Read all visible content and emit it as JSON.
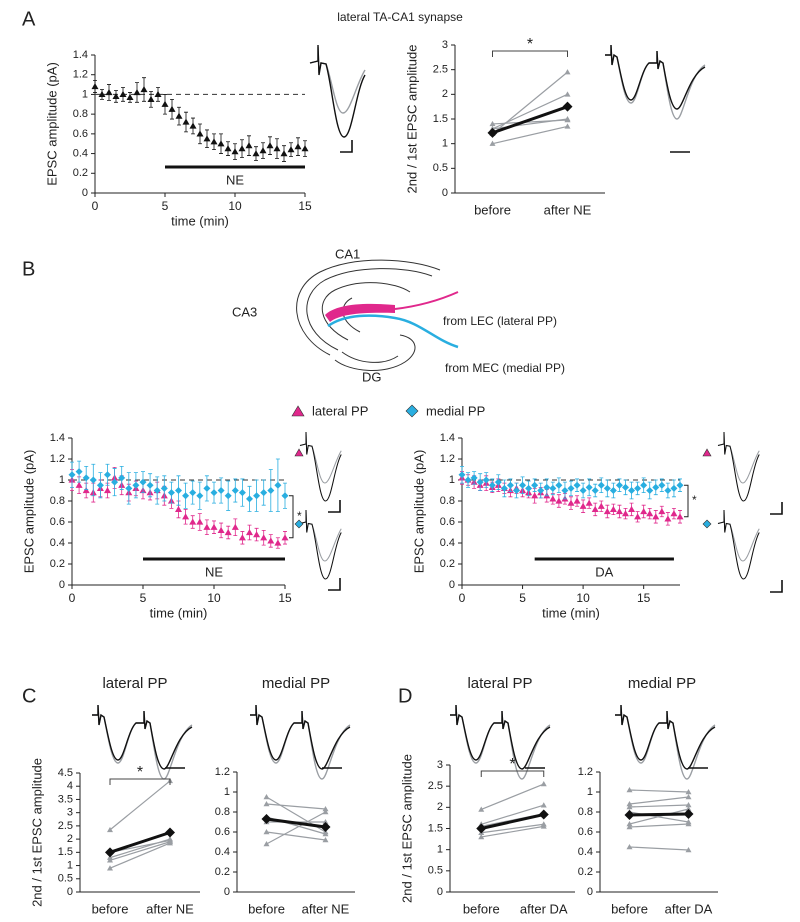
{
  "figure": {
    "panel_labels": [
      "A",
      "B",
      "C",
      "D"
    ],
    "diagram": {
      "regions": [
        "CA1",
        "CA3",
        "DG"
      ],
      "inputs": [
        "from LEC (lateral PP)",
        "from MEC (medial PP)"
      ],
      "input_colors": [
        "#e0288c",
        "#29aee0"
      ]
    }
  },
  "chart_data": [
    {
      "type": "scatter",
      "title": "lateral TA-CA1 synapse",
      "x_label": "time (min)",
      "y_label": "EPSC amplitude (pA)",
      "x": [
        0,
        0.5,
        1,
        1.5,
        2,
        2.5,
        3,
        3.5,
        4,
        4.5,
        5,
        5.5,
        6,
        6.5,
        7,
        7.5,
        8,
        8.5,
        9,
        9.5,
        10,
        10.5,
        11,
        11.5,
        12,
        12.5,
        13,
        13.5,
        14,
        14.5,
        15
      ],
      "series": [
        {
          "color": "#111111",
          "marker": "triangle",
          "values": [
            1.08,
            1.0,
            1.02,
            0.98,
            1.0,
            0.97,
            1.02,
            1.05,
            0.95,
            1.0,
            0.9,
            0.85,
            0.78,
            0.72,
            0.68,
            0.6,
            0.55,
            0.52,
            0.5,
            0.45,
            0.42,
            0.45,
            0.48,
            0.4,
            0.43,
            0.48,
            0.45,
            0.4,
            0.44,
            0.47,
            0.45
          ],
          "errors": [
            0.06,
            0.05,
            0.08,
            0.06,
            0.07,
            0.05,
            0.1,
            0.12,
            0.08,
            0.07,
            0.1,
            0.1,
            0.09,
            0.1,
            0.08,
            0.1,
            0.09,
            0.08,
            0.1,
            0.07,
            0.08,
            0.09,
            0.1,
            0.07,
            0.08,
            0.09,
            0.1,
            0.08,
            0.07,
            0.09,
            0.08
          ]
        }
      ],
      "xlim": [
        0,
        15
      ],
      "xticks": [
        0,
        5,
        10,
        15
      ],
      "ylim": [
        0,
        1.4
      ],
      "yticks": [
        0,
        0.2,
        0.4,
        0.6,
        0.8,
        1,
        1.2,
        1.4
      ],
      "reference": 1,
      "drug_bar": {
        "from": 5,
        "to": 15,
        "label": "NE"
      }
    },
    {
      "type": "line",
      "y_label": "2nd / 1st EPSC amplitude",
      "categories": [
        "before",
        "after NE"
      ],
      "significance": "*",
      "ylim": [
        0,
        3
      ],
      "yticks": [
        0,
        0.5,
        1,
        1.5,
        2,
        2.5,
        3
      ],
      "series": [
        {
          "color": "#9a9ea3",
          "marker": "triangle",
          "values": [
            1.0,
            1.35
          ]
        },
        {
          "color": "#9a9ea3",
          "marker": "triangle",
          "values": [
            1.3,
            1.5
          ]
        },
        {
          "color": "#9a9ea3",
          "marker": "triangle",
          "values": [
            1.4,
            1.48
          ]
        },
        {
          "color": "#9a9ea3",
          "marker": "triangle",
          "values": [
            1.3,
            2.0
          ]
        },
        {
          "color": "#9a9ea3",
          "marker": "triangle",
          "values": [
            1.2,
            2.45
          ]
        },
        {
          "color": "#111111",
          "marker": "diamond",
          "width": 3,
          "values": [
            1.22,
            1.75
          ]
        }
      ]
    },
    {
      "type": "scatter",
      "x_label": "time (min)",
      "y_label": "EPSC amplitude (pA)",
      "significance": "*",
      "x": [
        0,
        0.5,
        1,
        1.5,
        2,
        2.5,
        3,
        3.5,
        4,
        4.5,
        5,
        5.5,
        6,
        6.5,
        7,
        7.5,
        8,
        8.5,
        9,
        9.5,
        10,
        10.5,
        11,
        11.5,
        12,
        12.5,
        13,
        13.5,
        14,
        14.5,
        15
      ],
      "series": [
        {
          "name": "lateral PP",
          "color": "#e0288c",
          "marker": "triangle",
          "values": [
            1.0,
            0.95,
            0.9,
            0.88,
            0.92,
            0.9,
            1.02,
            0.95,
            0.88,
            0.92,
            0.9,
            0.88,
            0.9,
            0.85,
            0.8,
            0.72,
            0.65,
            0.6,
            0.6,
            0.55,
            0.55,
            0.52,
            0.5,
            0.55,
            0.45,
            0.5,
            0.48,
            0.45,
            0.42,
            0.4,
            0.45
          ],
          "errors": [
            0.1,
            0.08,
            0.07,
            0.09,
            0.08,
            0.07,
            0.1,
            0.09,
            0.08,
            0.07,
            0.08,
            0.07,
            0.08,
            0.09,
            0.07,
            0.08,
            0.07,
            0.06,
            0.08,
            0.07,
            0.06,
            0.07,
            0.06,
            0.08,
            0.06,
            0.07,
            0.06,
            0.07,
            0.06,
            0.05,
            0.06
          ]
        },
        {
          "name": "medial PP",
          "color": "#29aee0",
          "marker": "diamond",
          "values": [
            1.05,
            1.08,
            1.02,
            1.0,
            0.95,
            1.05,
            0.98,
            1.02,
            0.92,
            0.95,
            0.98,
            0.95,
            0.9,
            0.92,
            0.88,
            0.9,
            0.85,
            0.88,
            0.85,
            0.92,
            0.88,
            0.9,
            0.85,
            0.9,
            0.88,
            0.82,
            0.85,
            0.88,
            0.9,
            0.95,
            0.85
          ],
          "errors": [
            0.12,
            0.1,
            0.11,
            0.15,
            0.12,
            0.1,
            0.13,
            0.11,
            0.15,
            0.12,
            0.1,
            0.11,
            0.13,
            0.12,
            0.1,
            0.14,
            0.12,
            0.11,
            0.13,
            0.12,
            0.1,
            0.12,
            0.14,
            0.11,
            0.13,
            0.12,
            0.15,
            0.12,
            0.2,
            0.25,
            0.12
          ]
        }
      ],
      "xlim": [
        0,
        15
      ],
      "xticks": [
        0,
        5,
        10,
        15
      ],
      "ylim": [
        0,
        1.4
      ],
      "yticks": [
        0,
        0.2,
        0.4,
        0.6,
        0.8,
        1,
        1.2,
        1.4
      ],
      "reference": 1,
      "drug_bar": {
        "from": 5,
        "to": 15,
        "label": "NE"
      }
    },
    {
      "type": "scatter",
      "x_label": "time (min)",
      "y_label": "EPSC amplitude (pA)",
      "significance": "*",
      "x": [
        0,
        0.5,
        1,
        1.5,
        2,
        2.5,
        3,
        3.5,
        4,
        4.5,
        5,
        5.5,
        6,
        6.5,
        7,
        7.5,
        8,
        8.5,
        9,
        9.5,
        10,
        10.5,
        11,
        11.5,
        12,
        12.5,
        13,
        13.5,
        14,
        14.5,
        15,
        15.5,
        16,
        16.5,
        17,
        17.5,
        18
      ],
      "series": [
        {
          "color": "#e0288c",
          "marker": "triangle",
          "values": [
            1.02,
            1.0,
            0.98,
            0.95,
            0.97,
            0.93,
            0.95,
            0.92,
            0.9,
            0.92,
            0.9,
            0.88,
            0.85,
            0.88,
            0.85,
            0.82,
            0.8,
            0.82,
            0.78,
            0.8,
            0.75,
            0.78,
            0.72,
            0.75,
            0.7,
            0.72,
            0.7,
            0.68,
            0.72,
            0.65,
            0.7,
            0.68,
            0.65,
            0.7,
            0.63,
            0.68,
            0.65
          ],
          "errors": [
            0.06,
            0.05,
            0.06,
            0.05,
            0.07,
            0.05,
            0.06,
            0.05,
            0.06,
            0.05,
            0.06,
            0.05,
            0.07,
            0.05,
            0.06,
            0.05,
            0.06,
            0.05,
            0.06,
            0.05,
            0.06,
            0.05,
            0.06,
            0.05,
            0.06,
            0.05,
            0.06,
            0.05,
            0.06,
            0.05,
            0.06,
            0.05,
            0.06,
            0.05,
            0.06,
            0.05,
            0.06
          ]
        },
        {
          "color": "#29aee0",
          "marker": "diamond",
          "values": [
            1.05,
            1.0,
            1.02,
            0.98,
            1.0,
            0.95,
            0.98,
            0.92,
            0.95,
            0.9,
            0.95,
            0.92,
            0.95,
            0.9,
            0.93,
            0.92,
            0.95,
            0.9,
            0.92,
            0.95,
            0.9,
            0.93,
            0.9,
            0.95,
            0.92,
            0.9,
            0.95,
            0.93,
            0.9,
            0.92,
            0.95,
            0.9,
            0.93,
            0.95,
            0.9,
            0.92,
            0.95
          ],
          "errors": [
            0.08,
            0.07,
            0.06,
            0.08,
            0.07,
            0.06,
            0.07,
            0.08,
            0.06,
            0.07,
            0.08,
            0.07,
            0.06,
            0.07,
            0.08,
            0.06,
            0.07,
            0.08,
            0.07,
            0.06,
            0.07,
            0.08,
            0.06,
            0.07,
            0.08,
            0.07,
            0.06,
            0.07,
            0.08,
            0.06,
            0.07,
            0.08,
            0.07,
            0.06,
            0.07,
            0.08,
            0.06
          ]
        }
      ],
      "xlim": [
        0,
        18
      ],
      "xticks": [
        0,
        5,
        10,
        15
      ],
      "ylim": [
        0,
        1.4
      ],
      "yticks": [
        0,
        0.2,
        0.4,
        0.6,
        0.8,
        1,
        1.2,
        1.4
      ],
      "reference": 1,
      "drug_bar": {
        "from": 6,
        "to": 17.5,
        "label": "DA"
      }
    },
    {
      "type": "line",
      "title": "lateral PP",
      "title_color": "#e0288c",
      "y_label": "2nd / 1st EPSC amplitude",
      "categories": [
        "before",
        "after NE"
      ],
      "significance": "*",
      "ylim": [
        0,
        4.5
      ],
      "yticks": [
        0,
        0.5,
        1,
        1.5,
        2,
        2.5,
        3,
        3.5,
        4,
        4.5
      ],
      "series": [
        {
          "color": "#9a9ea3",
          "marker": "triangle",
          "values": [
            2.35,
            4.2
          ]
        },
        {
          "color": "#9a9ea3",
          "marker": "triangle",
          "values": [
            1.5,
            1.95
          ]
        },
        {
          "color": "#9a9ea3",
          "marker": "triangle",
          "values": [
            1.3,
            2.0
          ]
        },
        {
          "color": "#9a9ea3",
          "marker": "triangle",
          "values": [
            1.2,
            1.9
          ]
        },
        {
          "color": "#9a9ea3",
          "marker": "triangle",
          "values": [
            0.9,
            1.85
          ]
        },
        {
          "color": "#111111",
          "marker": "diamond",
          "width": 3,
          "values": [
            1.5,
            2.25
          ]
        }
      ]
    },
    {
      "type": "line",
      "title": "medial PP",
      "title_color": "#29aee0",
      "categories": [
        "before",
        "after NE"
      ],
      "ylim": [
        0,
        1.2
      ],
      "yticks": [
        0,
        0.2,
        0.4,
        0.6,
        0.8,
        1,
        1.2
      ],
      "series": [
        {
          "color": "#9a9ea3",
          "marker": "triangle",
          "values": [
            0.95,
            0.6
          ]
        },
        {
          "color": "#9a9ea3",
          "marker": "triangle",
          "values": [
            0.88,
            0.83
          ]
        },
        {
          "color": "#9a9ea3",
          "marker": "triangle",
          "values": [
            0.75,
            0.58
          ]
        },
        {
          "color": "#9a9ea3",
          "marker": "triangle",
          "values": [
            0.7,
            0.7
          ]
        },
        {
          "color": "#9a9ea3",
          "marker": "triangle",
          "values": [
            0.6,
            0.52
          ]
        },
        {
          "color": "#9a9ea3",
          "marker": "triangle",
          "values": [
            0.48,
            0.8
          ]
        },
        {
          "color": "#111111",
          "marker": "diamond",
          "width": 3,
          "values": [
            0.73,
            0.65
          ]
        }
      ]
    },
    {
      "type": "line",
      "title": "lateral PP",
      "title_color": "#e0288c",
      "y_label": "2nd / 1st EPSC amplitude",
      "categories": [
        "before",
        "after DA"
      ],
      "significance": "*",
      "ylim": [
        0,
        3
      ],
      "yticks": [
        0,
        0.5,
        1,
        1.5,
        2,
        2.5,
        3
      ],
      "series": [
        {
          "color": "#9a9ea3",
          "marker": "triangle",
          "values": [
            1.95,
            2.55
          ]
        },
        {
          "color": "#9a9ea3",
          "marker": "triangle",
          "values": [
            1.6,
            2.05
          ]
        },
        {
          "color": "#9a9ea3",
          "marker": "triangle",
          "values": [
            1.55,
            1.85
          ]
        },
        {
          "color": "#9a9ea3",
          "marker": "triangle",
          "values": [
            1.4,
            1.6
          ]
        },
        {
          "color": "#9a9ea3",
          "marker": "triangle",
          "values": [
            1.3,
            1.55
          ]
        },
        {
          "color": "#111111",
          "marker": "diamond",
          "width": 3,
          "values": [
            1.5,
            1.83
          ]
        }
      ]
    },
    {
      "type": "line",
      "title": "medial PP",
      "title_color": "#29aee0",
      "categories": [
        "before",
        "after DA"
      ],
      "ylim": [
        0,
        1.2
      ],
      "yticks": [
        0,
        0.2,
        0.4,
        0.6,
        0.8,
        1,
        1.2
      ],
      "series": [
        {
          "color": "#9a9ea3",
          "marker": "triangle",
          "values": [
            1.02,
            1.0
          ]
        },
        {
          "color": "#9a9ea3",
          "marker": "triangle",
          "values": [
            0.88,
            0.95
          ]
        },
        {
          "color": "#9a9ea3",
          "marker": "triangle",
          "values": [
            0.85,
            0.87
          ]
        },
        {
          "color": "#9a9ea3",
          "marker": "triangle",
          "values": [
            0.8,
            0.7
          ]
        },
        {
          "color": "#9a9ea3",
          "marker": "triangle",
          "values": [
            0.68,
            0.83
          ]
        },
        {
          "color": "#9a9ea3",
          "marker": "triangle",
          "values": [
            0.65,
            0.68
          ]
        },
        {
          "color": "#9a9ea3",
          "marker": "triangle",
          "values": [
            0.45,
            0.42
          ]
        },
        {
          "color": "#111111",
          "marker": "diamond",
          "width": 3,
          "values": [
            0.77,
            0.78
          ]
        }
      ]
    }
  ]
}
